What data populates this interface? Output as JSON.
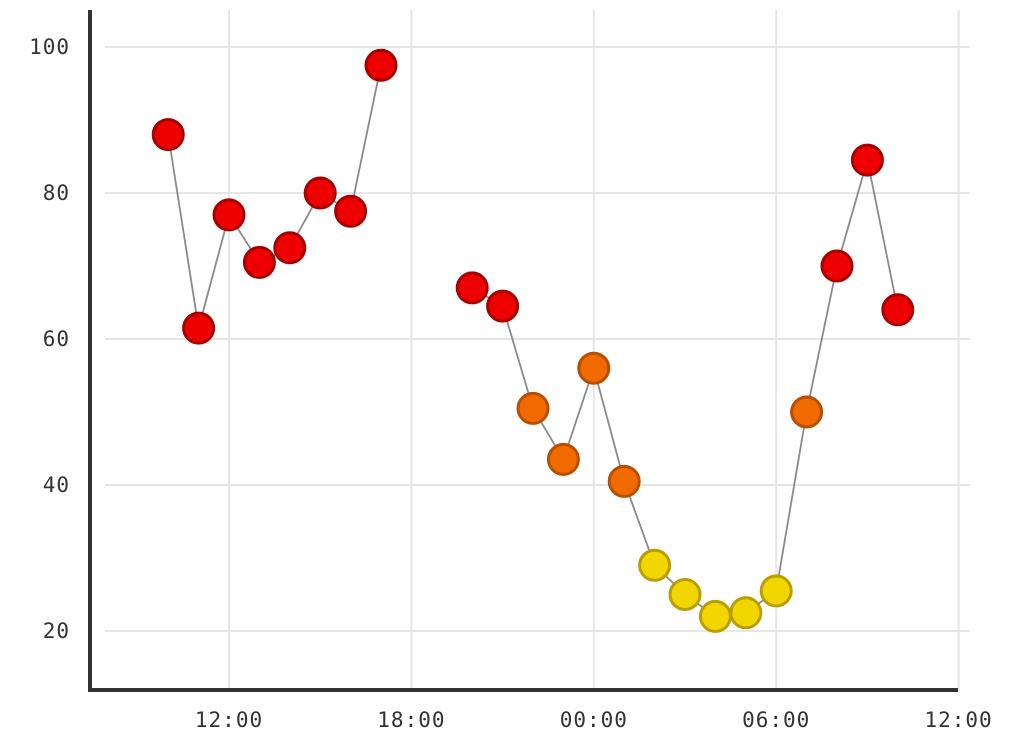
{
  "chart_data": {
    "type": "scatter",
    "connected": true,
    "grid": true,
    "xlim": [
      "09:00",
      "12:00 (next day)"
    ],
    "ylim": [
      12,
      103
    ],
    "xticks": [
      "12:00",
      "18:00",
      "00:00",
      "06:00",
      "12:00"
    ],
    "yticks": [
      20,
      40,
      60,
      80,
      100
    ],
    "color_scale": [
      {
        "range": "< 30",
        "color": "#f2d600",
        "stroke": "#b89e00"
      },
      {
        "range": "30 - 60",
        "color": "#f06a00",
        "stroke": "#b84f00"
      },
      {
        "range": ">= 60",
        "color": "#ee0000",
        "stroke": "#a80000"
      }
    ],
    "segments": [
      [
        {
          "x": "10:00",
          "y": 88
        },
        {
          "x": "11:00",
          "y": 61.5
        },
        {
          "x": "12:00",
          "y": 77
        },
        {
          "x": "13:00",
          "y": 70.5
        },
        {
          "x": "14:00",
          "y": 72.5
        },
        {
          "x": "15:00",
          "y": 80
        },
        {
          "x": "16:00",
          "y": 77.5
        },
        {
          "x": "17:00",
          "y": 97.5
        }
      ],
      [
        {
          "x": "20:00",
          "y": 67
        },
        {
          "x": "21:00",
          "y": 64.5
        },
        {
          "x": "22:00",
          "y": 50.5
        },
        {
          "x": "23:00",
          "y": 43.5
        },
        {
          "x": "00:00",
          "y": 56
        },
        {
          "x": "01:00",
          "y": 40.5
        },
        {
          "x": "02:00",
          "y": 29
        },
        {
          "x": "03:00",
          "y": 25
        },
        {
          "x": "04:00",
          "y": 22
        },
        {
          "x": "05:00",
          "y": 22.5
        },
        {
          "x": "06:00",
          "y": 25.5
        },
        {
          "x": "07:00",
          "y": 50
        },
        {
          "x": "08:00",
          "y": 70
        },
        {
          "x": "09:00",
          "y": 84.5
        },
        {
          "x": "10:00",
          "y": 64
        }
      ]
    ]
  }
}
